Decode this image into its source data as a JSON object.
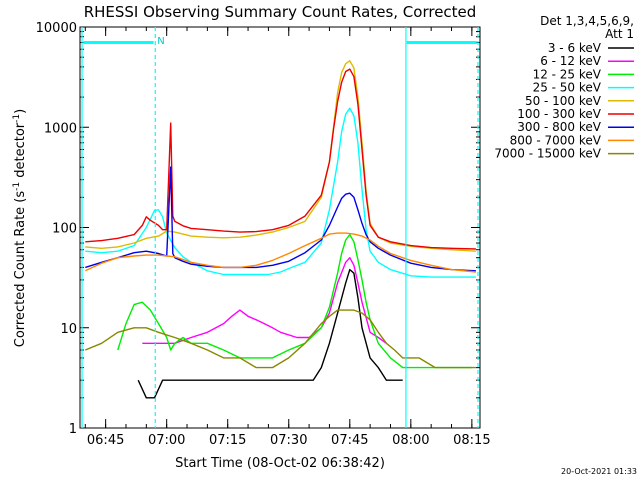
{
  "chart_data": {
    "type": "line",
    "title": "RHESSI Observing Summary Count Rates, Corrected",
    "xlabel": "Start Time (08-Oct-02 06:38:42)",
    "ylabel_main": "Corrected Count Rate (s",
    "ylabel_sup1": "-1",
    "ylabel_mid": " detector",
    "ylabel_sup2": "-1",
    "ylabel_end": ")",
    "x_unit": "minutes since 06:00 UT",
    "xlim": [
      38.7,
      137.0
    ],
    "ylim": [
      1,
      10000
    ],
    "yscale": "log",
    "xticks": [
      {
        "value": 45,
        "label": "06:45"
      },
      {
        "value": 60,
        "label": "07:00"
      },
      {
        "value": 75,
        "label": "07:15"
      },
      {
        "value": 90,
        "label": "07:30"
      },
      {
        "value": 105,
        "label": "07:45"
      },
      {
        "value": 120,
        "label": "08:00"
      },
      {
        "value": 135,
        "label": "08:15"
      }
    ],
    "yticks": [
      {
        "value": 1,
        "label": "1"
      },
      {
        "value": 10,
        "label": "10"
      },
      {
        "value": 100,
        "label": "100"
      },
      {
        "value": 1000,
        "label": "1000"
      },
      {
        "value": 10000,
        "label": "10000"
      }
    ],
    "legend": {
      "header1": "Det 1,3,4,5,6,9,",
      "header2": "Att 1",
      "placement": "right"
    },
    "flag_label": "N",
    "timestamp": "20-Oct-2021 01:33",
    "series": [
      {
        "name": "3 - 6 keV",
        "color": "#000000",
        "points": [
          [
            53,
            3
          ],
          [
            55,
            2
          ],
          [
            57,
            2
          ],
          [
            59,
            3
          ],
          [
            62,
            3
          ],
          [
            65,
            3
          ],
          [
            70,
            3
          ],
          [
            80,
            3
          ],
          [
            90,
            3
          ],
          [
            96,
            3
          ],
          [
            98,
            4
          ],
          [
            100,
            7
          ],
          [
            102,
            14
          ],
          [
            104,
            28
          ],
          [
            105,
            38
          ],
          [
            106,
            35
          ],
          [
            107,
            20
          ],
          [
            108,
            10
          ],
          [
            110,
            5
          ],
          [
            112,
            4
          ],
          [
            114,
            3
          ],
          [
            118,
            3
          ]
        ]
      },
      {
        "name": "6 - 12 keV",
        "color": "#ff00ff",
        "points": [
          [
            54,
            7
          ],
          [
            58,
            7
          ],
          [
            62,
            7
          ],
          [
            66,
            8
          ],
          [
            70,
            9
          ],
          [
            74,
            11
          ],
          [
            76,
            13
          ],
          [
            78,
            15
          ],
          [
            80,
            13
          ],
          [
            82,
            12
          ],
          [
            84,
            11
          ],
          [
            86,
            10
          ],
          [
            88,
            9
          ],
          [
            92,
            8
          ],
          [
            95,
            8
          ],
          [
            98,
            10
          ],
          [
            100,
            14
          ],
          [
            102,
            28
          ],
          [
            104,
            45
          ],
          [
            105,
            50
          ],
          [
            106,
            42
          ],
          [
            107,
            28
          ],
          [
            108,
            18
          ],
          [
            110,
            9
          ],
          [
            112,
            8
          ],
          [
            114,
            7
          ]
        ]
      },
      {
        "name": "12 - 25 keV",
        "color": "#00ee00",
        "points": [
          [
            48,
            6
          ],
          [
            50,
            11
          ],
          [
            52,
            17
          ],
          [
            54,
            18
          ],
          [
            56,
            15
          ],
          [
            58,
            11
          ],
          [
            60,
            8
          ],
          [
            61,
            6
          ],
          [
            62,
            7
          ],
          [
            64,
            8
          ],
          [
            66,
            7
          ],
          [
            70,
            7
          ],
          [
            74,
            6
          ],
          [
            78,
            5
          ],
          [
            82,
            5
          ],
          [
            86,
            5
          ],
          [
            90,
            6
          ],
          [
            94,
            7
          ],
          [
            98,
            10
          ],
          [
            100,
            16
          ],
          [
            102,
            35
          ],
          [
            103,
            55
          ],
          [
            104,
            75
          ],
          [
            105,
            85
          ],
          [
            106,
            72
          ],
          [
            107,
            48
          ],
          [
            108,
            30
          ],
          [
            109,
            18
          ],
          [
            110,
            12
          ],
          [
            112,
            7
          ],
          [
            115,
            5
          ],
          [
            118,
            4
          ],
          [
            122,
            4
          ],
          [
            126,
            4
          ],
          [
            130,
            4
          ],
          [
            135,
            4
          ]
        ]
      },
      {
        "name": "25 - 50 keV",
        "color": "#00ffff",
        "points": [
          [
            40,
            58
          ],
          [
            44,
            56
          ],
          [
            48,
            58
          ],
          [
            52,
            66
          ],
          [
            55,
            100
          ],
          [
            57,
            148
          ],
          [
            58,
            150
          ],
          [
            59,
            128
          ],
          [
            60,
            88
          ],
          [
            62,
            63
          ],
          [
            64,
            51
          ],
          [
            66,
            45
          ],
          [
            70,
            37
          ],
          [
            74,
            34
          ],
          [
            80,
            34
          ],
          [
            85,
            34
          ],
          [
            88,
            36
          ],
          [
            90,
            39
          ],
          [
            94,
            45
          ],
          [
            98,
            70
          ],
          [
            100,
            150
          ],
          [
            102,
            450
          ],
          [
            103,
            900
          ],
          [
            104,
            1350
          ],
          [
            105,
            1550
          ],
          [
            106,
            1300
          ],
          [
            107,
            700
          ],
          [
            108,
            240
          ],
          [
            109,
            95
          ],
          [
            110,
            58
          ],
          [
            112,
            45
          ],
          [
            115,
            38
          ],
          [
            120,
            33
          ],
          [
            125,
            32
          ],
          [
            130,
            32
          ],
          [
            136,
            32
          ]
        ]
      },
      {
        "name": "50 - 100 keV",
        "color": "#ddbb00",
        "points": [
          [
            40,
            64
          ],
          [
            44,
            62
          ],
          [
            48,
            64
          ],
          [
            52,
            70
          ],
          [
            55,
            78
          ],
          [
            58,
            82
          ],
          [
            60,
            92
          ],
          [
            62,
            90
          ],
          [
            64,
            86
          ],
          [
            66,
            82
          ],
          [
            70,
            80
          ],
          [
            74,
            79
          ],
          [
            78,
            80
          ],
          [
            82,
            84
          ],
          [
            86,
            90
          ],
          [
            90,
            100
          ],
          [
            94,
            115
          ],
          [
            98,
            200
          ],
          [
            100,
            450
          ],
          [
            101,
            1000
          ],
          [
            102,
            2200
          ],
          [
            103,
            3500
          ],
          [
            104,
            4300
          ],
          [
            105,
            4600
          ],
          [
            106,
            3900
          ],
          [
            107,
            2000
          ],
          [
            108,
            700
          ],
          [
            109,
            230
          ],
          [
            110,
            110
          ],
          [
            112,
            80
          ],
          [
            115,
            70
          ],
          [
            120,
            65
          ],
          [
            125,
            62
          ],
          [
            130,
            60
          ],
          [
            136,
            58
          ]
        ]
      },
      {
        "name": "100 - 300 keV",
        "color": "#ee0000",
        "points": [
          [
            40,
            72
          ],
          [
            44,
            74
          ],
          [
            48,
            78
          ],
          [
            52,
            85
          ],
          [
            54,
            105
          ],
          [
            55,
            128
          ],
          [
            56,
            118
          ],
          [
            58,
            105
          ],
          [
            59,
            95
          ],
          [
            60,
            95
          ],
          [
            61,
            1100
          ],
          [
            61.5,
            130
          ],
          [
            62,
            115
          ],
          [
            64,
            104
          ],
          [
            66,
            98
          ],
          [
            70,
            95
          ],
          [
            74,
            92
          ],
          [
            78,
            90
          ],
          [
            82,
            91
          ],
          [
            86,
            95
          ],
          [
            90,
            105
          ],
          [
            94,
            130
          ],
          [
            98,
            210
          ],
          [
            100,
            450
          ],
          [
            101,
            950
          ],
          [
            102,
            1800
          ],
          [
            103,
            2800
          ],
          [
            104,
            3600
          ],
          [
            105,
            3800
          ],
          [
            106,
            3200
          ],
          [
            107,
            1700
          ],
          [
            108,
            600
          ],
          [
            109,
            210
          ],
          [
            110,
            105
          ],
          [
            112,
            80
          ],
          [
            115,
            72
          ],
          [
            120,
            66
          ],
          [
            125,
            63
          ],
          [
            130,
            62
          ],
          [
            136,
            61
          ]
        ]
      },
      {
        "name": "300 - 800 keV",
        "color": "#0000ee",
        "points": [
          [
            40,
            40
          ],
          [
            44,
            45
          ],
          [
            48,
            50
          ],
          [
            52,
            56
          ],
          [
            55,
            58
          ],
          [
            58,
            55
          ],
          [
            60,
            52
          ],
          [
            61,
            400
          ],
          [
            61.5,
            55
          ],
          [
            62,
            50
          ],
          [
            64,
            46
          ],
          [
            66,
            43
          ],
          [
            70,
            41
          ],
          [
            74,
            40
          ],
          [
            78,
            40
          ],
          [
            82,
            40
          ],
          [
            86,
            42
          ],
          [
            90,
            46
          ],
          [
            94,
            56
          ],
          [
            98,
            75
          ],
          [
            100,
            105
          ],
          [
            102,
            160
          ],
          [
            103,
            195
          ],
          [
            104,
            215
          ],
          [
            105,
            220
          ],
          [
            106,
            200
          ],
          [
            107,
            150
          ],
          [
            108,
            110
          ],
          [
            109,
            85
          ],
          [
            110,
            72
          ],
          [
            112,
            62
          ],
          [
            115,
            53
          ],
          [
            120,
            44
          ],
          [
            125,
            40
          ],
          [
            130,
            38
          ],
          [
            136,
            37
          ]
        ]
      },
      {
        "name": "800 - 7000 keV",
        "color": "#ff8800",
        "points": [
          [
            40,
            37
          ],
          [
            44,
            44
          ],
          [
            48,
            50
          ],
          [
            52,
            52
          ],
          [
            55,
            53
          ],
          [
            58,
            53
          ],
          [
            60,
            52
          ],
          [
            62,
            51
          ],
          [
            64,
            48
          ],
          [
            66,
            45
          ],
          [
            70,
            42
          ],
          [
            74,
            40
          ],
          [
            78,
            40
          ],
          [
            82,
            42
          ],
          [
            86,
            47
          ],
          [
            90,
            55
          ],
          [
            94,
            66
          ],
          [
            98,
            78
          ],
          [
            100,
            86
          ],
          [
            102,
            88
          ],
          [
            104,
            88
          ],
          [
            106,
            86
          ],
          [
            108,
            82
          ],
          [
            110,
            75
          ],
          [
            112,
            65
          ],
          [
            115,
            55
          ],
          [
            120,
            47
          ],
          [
            125,
            42
          ],
          [
            130,
            38
          ],
          [
            136,
            36
          ]
        ]
      },
      {
        "name": "7000 - 15000 keV",
        "color": "#888800",
        "points": [
          [
            40,
            6
          ],
          [
            44,
            7
          ],
          [
            48,
            9
          ],
          [
            52,
            10
          ],
          [
            55,
            10
          ],
          [
            58,
            9
          ],
          [
            62,
            8
          ],
          [
            66,
            7
          ],
          [
            70,
            6
          ],
          [
            74,
            5
          ],
          [
            78,
            5
          ],
          [
            82,
            4
          ],
          [
            86,
            4
          ],
          [
            90,
            5
          ],
          [
            94,
            7
          ],
          [
            98,
            11
          ],
          [
            100,
            13
          ],
          [
            102,
            15
          ],
          [
            104,
            15
          ],
          [
            106,
            15
          ],
          [
            108,
            14
          ],
          [
            110,
            12
          ],
          [
            112,
            9
          ],
          [
            114,
            7
          ],
          [
            116,
            6
          ],
          [
            118,
            5
          ],
          [
            122,
            5
          ],
          [
            126,
            4
          ],
          [
            130,
            4
          ],
          [
            136,
            4
          ]
        ]
      }
    ],
    "vlines": [
      {
        "x": 39.2,
        "color": "#00ffff",
        "style": "solid"
      },
      {
        "x": 57.2,
        "color": "#00ffff",
        "style": "dashed"
      },
      {
        "x": 118.8,
        "color": "#00ffff",
        "style": "solid"
      },
      {
        "x": 136.5,
        "color": "#00ffff",
        "style": "dashed"
      }
    ],
    "flag_bars": [
      {
        "x0": 39.5,
        "x1": 56.8,
        "y": 7000,
        "color": "#00ffff"
      },
      {
        "x0": 119.0,
        "x1": 136.2,
        "y": 7000,
        "color": "#00ffff"
      }
    ]
  }
}
